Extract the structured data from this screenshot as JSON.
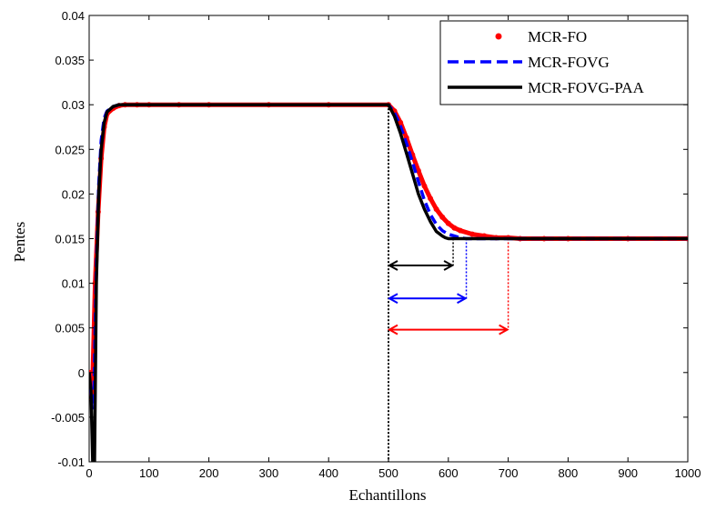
{
  "chart_data": {
    "type": "line",
    "xlabel": "Echantillons",
    "ylabel": "Pentes",
    "xlim": [
      0,
      1000
    ],
    "ylim": [
      -0.01,
      0.04
    ],
    "xticks": [
      0,
      100,
      200,
      300,
      400,
      500,
      600,
      700,
      800,
      900,
      1000
    ],
    "yticks": [
      -0.01,
      -0.005,
      0,
      0.005,
      0.01,
      0.015,
      0.02,
      0.025,
      0.03,
      0.035,
      0.04
    ],
    "xtick_labels": [
      "0",
      "100",
      "200",
      "300",
      "400",
      "500",
      "600",
      "700",
      "800",
      "900",
      "1000"
    ],
    "ytick_labels": [
      "-0.01",
      "-0.005",
      "0",
      "0.005",
      "0.01",
      "0.015",
      "0.02",
      "0.025",
      "0.03",
      "0.035",
      "0.04"
    ],
    "grid": false,
    "legend_position": "top-right",
    "series": [
      {
        "name": "MCR-FO",
        "style": "dots",
        "color": "#ff0000",
        "x": [
          0,
          5,
          10,
          15,
          20,
          25,
          30,
          40,
          50,
          60,
          80,
          100,
          150,
          200,
          300,
          400,
          500,
          510,
          520,
          530,
          540,
          550,
          560,
          570,
          580,
          590,
          600,
          610,
          620,
          640,
          660,
          680,
          700,
          720,
          760,
          800,
          900,
          1000
        ],
        "y": [
          0,
          -0.003,
          0.01,
          0.018,
          0.024,
          0.0275,
          0.029,
          0.0296,
          0.0299,
          0.03,
          0.03,
          0.03,
          0.03,
          0.03,
          0.03,
          0.03,
          0.03,
          0.0293,
          0.028,
          0.0263,
          0.0244,
          0.0226,
          0.0209,
          0.0195,
          0.0183,
          0.0174,
          0.0167,
          0.0162,
          0.0159,
          0.0155,
          0.0153,
          0.0151,
          0.0151,
          0.015,
          0.015,
          0.015,
          0.015,
          0.015
        ]
      },
      {
        "name": "MCR-FOVG",
        "style": "dashed",
        "color": "#0000ff",
        "x": [
          0,
          5,
          8,
          12,
          16,
          20,
          25,
          30,
          40,
          50,
          60,
          100,
          200,
          300,
          400,
          500,
          510,
          520,
          530,
          540,
          550,
          560,
          570,
          580,
          590,
          600,
          610,
          620,
          630,
          650,
          700,
          800,
          1000
        ],
        "y": [
          0,
          -0.004,
          -0.002,
          0.012,
          0.021,
          0.026,
          0.0285,
          0.0293,
          0.0298,
          0.03,
          0.03,
          0.03,
          0.03,
          0.03,
          0.03,
          0.03,
          0.0291,
          0.0276,
          0.0257,
          0.0236,
          0.0214,
          0.0193,
          0.0177,
          0.0166,
          0.0159,
          0.0155,
          0.0153,
          0.0151,
          0.015,
          0.015,
          0.015,
          0.015,
          0.015
        ]
      },
      {
        "name": "MCR-FOVG-PAA",
        "style": "solid",
        "color": "#000000",
        "x": [
          0,
          3,
          6,
          9,
          12,
          16,
          20,
          25,
          30,
          40,
          50,
          100,
          200,
          300,
          400,
          500,
          510,
          520,
          530,
          540,
          550,
          560,
          570,
          580,
          590,
          595,
          600,
          610,
          700,
          800,
          1000
        ],
        "y": [
          0,
          -0.002,
          -0.01,
          -0.01,
          0.01,
          0.02,
          0.025,
          0.028,
          0.0292,
          0.0298,
          0.03,
          0.03,
          0.03,
          0.03,
          0.03,
          0.03,
          0.0287,
          0.0268,
          0.0246,
          0.0223,
          0.02,
          0.0183,
          0.0169,
          0.0158,
          0.0153,
          0.0151,
          0.015,
          0.015,
          0.015,
          0.015,
          0.015
        ]
      }
    ],
    "annotations": {
      "start_line_x": 500,
      "arrows": [
        {
          "color": "#000000",
          "x0": 500,
          "x1": 608,
          "y": 0.012
        },
        {
          "color": "#0000ff",
          "x0": 500,
          "x1": 630,
          "y": 0.0083
        },
        {
          "color": "#ff0000",
          "x0": 500,
          "x1": 700,
          "y": 0.0048
        }
      ]
    }
  }
}
